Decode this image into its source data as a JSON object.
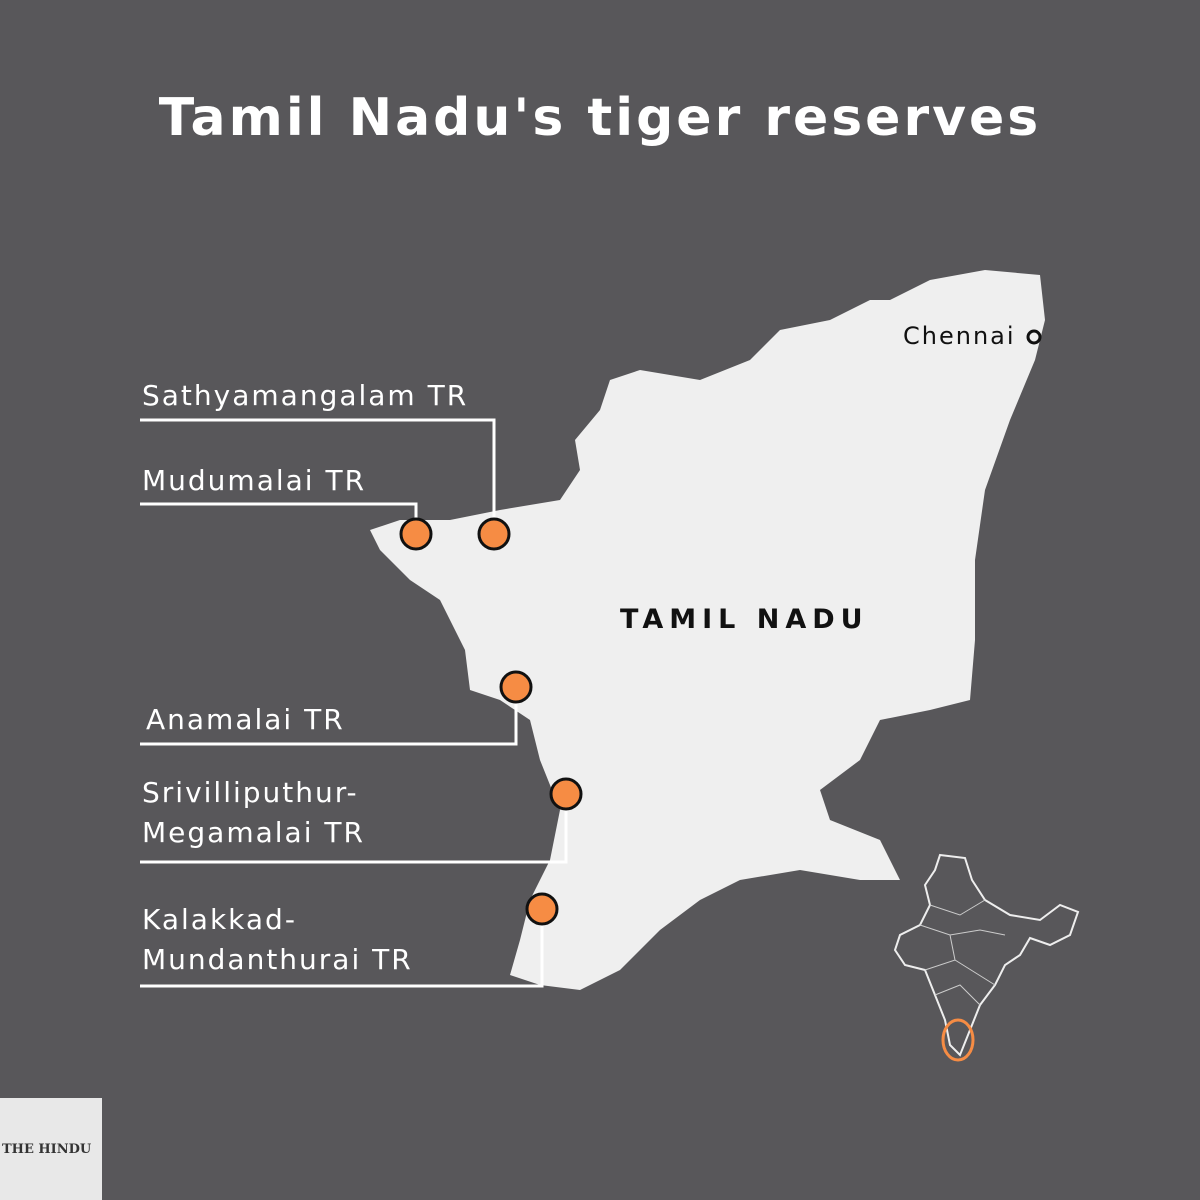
{
  "title": "Tamil Nadu's tiger reserves",
  "state_label": "TAMIL NADU",
  "city": {
    "name": "Chennai"
  },
  "reserves": [
    {
      "label": "Sathyamangalam TR"
    },
    {
      "label": "Mudumalai TR"
    },
    {
      "label": "Anamalai TR"
    },
    {
      "label": "Srivilliputhur-\nMegamalai TR"
    },
    {
      "label": "Kalakkad-\nMundanthurai TR"
    }
  ],
  "logo": {
    "text": "THE HINDU"
  },
  "colors": {
    "background": "#58575a",
    "land": "#efefef",
    "marker": "#f68c44",
    "highlight": "#f68c44"
  }
}
